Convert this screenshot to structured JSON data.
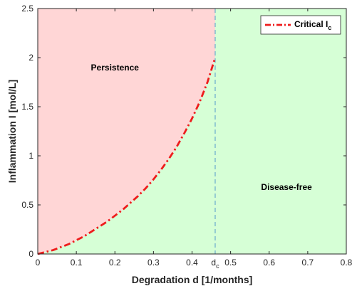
{
  "chart_data": {
    "type": "area",
    "xlabel": "Degradation d [1/months]",
    "ylabel": "Inflammation I [mol/L]",
    "xlim": [
      0,
      0.8
    ],
    "ylim": [
      0,
      2.5
    ],
    "x_ticks": [
      "0",
      "0.1",
      "0.2",
      "0.3",
      "0.4",
      "0.5",
      "0.6",
      "0.7",
      "0.8"
    ],
    "y_ticks": [
      "0",
      "0.5",
      "1",
      "1.5",
      "2",
      "2.5"
    ],
    "critical_d": 0.46,
    "critical_d_label": "d",
    "critical_d_label_sub": "c",
    "grid": false,
    "legend_position": "top-right",
    "series": [
      {
        "name": "Critical I",
        "name_sub": "c",
        "color": "#ee1c1c",
        "style": "dash-dot",
        "x": [
          0,
          0.02,
          0.04,
          0.06,
          0.08,
          0.1,
          0.12,
          0.14,
          0.16,
          0.18,
          0.2,
          0.22,
          0.24,
          0.26,
          0.28,
          0.3,
          0.32,
          0.34,
          0.36,
          0.38,
          0.4,
          0.42,
          0.44,
          0.46
        ],
        "y": [
          0,
          0.02,
          0.04,
          0.07,
          0.1,
          0.14,
          0.18,
          0.23,
          0.28,
          0.33,
          0.39,
          0.45,
          0.52,
          0.59,
          0.67,
          0.76,
          0.86,
          0.97,
          1.09,
          1.23,
          1.38,
          1.55,
          1.75,
          2.0
        ]
      }
    ],
    "regions": [
      {
        "label": "Persistence",
        "color": "#ffd6d6",
        "label_x": 0.2,
        "label_y": 1.9
      },
      {
        "label": "Disease-free",
        "color": "#d6ffd6",
        "label_x": 0.645,
        "label_y": 0.68
      }
    ],
    "threshold_line_color": "#66aacc"
  }
}
